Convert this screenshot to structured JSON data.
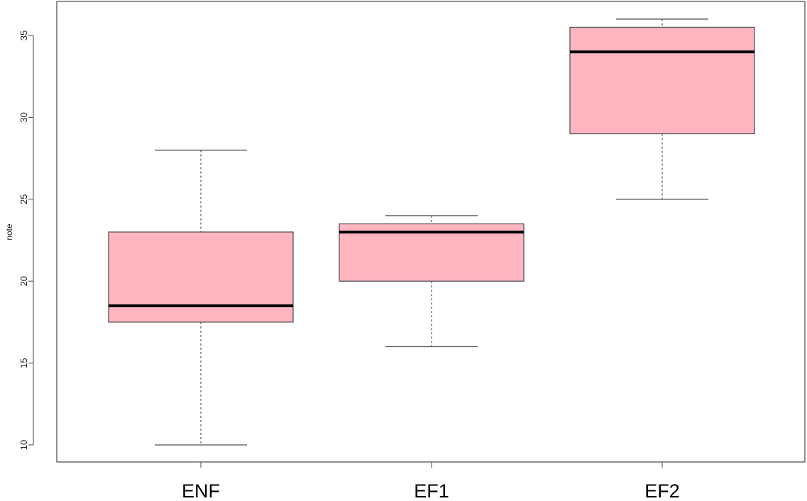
{
  "chart_data": {
    "type": "boxplot",
    "ylabel": "note",
    "ylim": [
      9.0,
      36.6
    ],
    "yticks": [
      10,
      15,
      20,
      25,
      30,
      35
    ],
    "categories": [
      "ENF",
      "EF1",
      "EF2"
    ],
    "boxes": [
      {
        "name": "ENF",
        "min": 10,
        "q1": 17.5,
        "median": 18.5,
        "q3": 23,
        "max": 28
      },
      {
        "name": "EF1",
        "min": 16,
        "q1": 20,
        "median": 23,
        "q3": 23.5,
        "max": 24
      },
      {
        "name": "EF2",
        "min": 25,
        "q1": 29,
        "median": 34,
        "q3": 35.5,
        "max": 36
      }
    ],
    "box_color": "#ffb6c1",
    "median_color": "#000000",
    "grid": false
  }
}
